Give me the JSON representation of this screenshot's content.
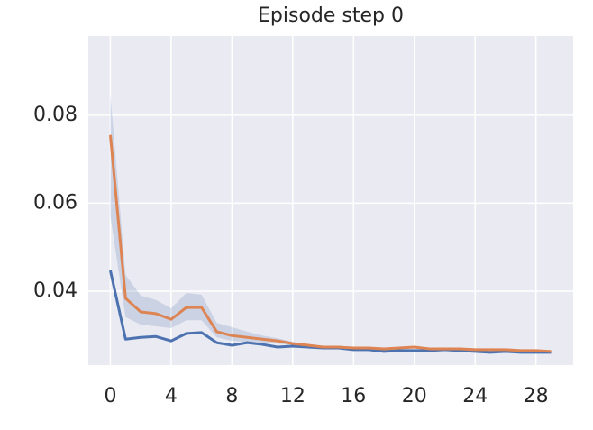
{
  "chart_data": {
    "type": "line",
    "title": "Episode step 0",
    "x": [
      0,
      1,
      2,
      3,
      4,
      5,
      6,
      7,
      8,
      9,
      10,
      11,
      12,
      13,
      14,
      15,
      16,
      17,
      18,
      19,
      20,
      21,
      22,
      23,
      24,
      25,
      26,
      27,
      28,
      29
    ],
    "series": [
      {
        "color": "#4c72b0",
        "values": [
          0.0447,
          0.0291,
          0.0295,
          0.0297,
          0.0287,
          0.0304,
          0.0306,
          0.0283,
          0.0277,
          0.0283,
          0.0279,
          0.0273,
          0.0275,
          0.0273,
          0.0271,
          0.0271,
          0.0267,
          0.0267,
          0.0263,
          0.0265,
          0.0265,
          0.0265,
          0.0267,
          0.0265,
          0.0263,
          0.0261,
          0.0263,
          0.0261,
          0.0261,
          0.0261
        ]
      },
      {
        "color": "#dd8452",
        "band_color": "#4c72b0",
        "values": [
          0.0755,
          0.0384,
          0.0353,
          0.0349,
          0.0336,
          0.0363,
          0.0363,
          0.0308,
          0.0299,
          0.0295,
          0.0291,
          0.0287,
          0.0281,
          0.0277,
          0.0273,
          0.0273,
          0.0271,
          0.0271,
          0.0269,
          0.0271,
          0.0273,
          0.0269,
          0.0269,
          0.0269,
          0.0267,
          0.0267,
          0.0267,
          0.0265,
          0.0265,
          0.0263
        ],
        "lower": [
          0.057,
          0.0341,
          0.0324,
          0.032,
          0.0316,
          0.0334,
          0.0334,
          0.0295,
          0.0287,
          0.0285,
          0.0283,
          0.0281,
          0.0277,
          0.0274,
          0.0271,
          0.0271,
          0.0269,
          0.0269,
          0.0267,
          0.0269,
          0.0271,
          0.0267,
          0.0267,
          0.0267,
          0.0265,
          0.0265,
          0.0265,
          0.0263,
          0.0263,
          0.0261
        ],
        "upper": [
          0.0847,
          0.0437,
          0.039,
          0.038,
          0.0361,
          0.0396,
          0.0392,
          0.0328,
          0.0318,
          0.0308,
          0.0299,
          0.0293,
          0.0285,
          0.028,
          0.0275,
          0.0275,
          0.0273,
          0.0273,
          0.0271,
          0.0273,
          0.0275,
          0.0271,
          0.0271,
          0.0271,
          0.0269,
          0.0269,
          0.0269,
          0.0267,
          0.0267,
          0.0265
        ]
      }
    ],
    "xlim": [
      -1.45,
      30.45
    ],
    "xticks": [
      0,
      4,
      8,
      12,
      16,
      20,
      24,
      28
    ],
    "ylim": [
      0.0232,
      0.098
    ],
    "yticks": [
      0.04,
      0.06,
      0.08
    ],
    "grid": true
  }
}
